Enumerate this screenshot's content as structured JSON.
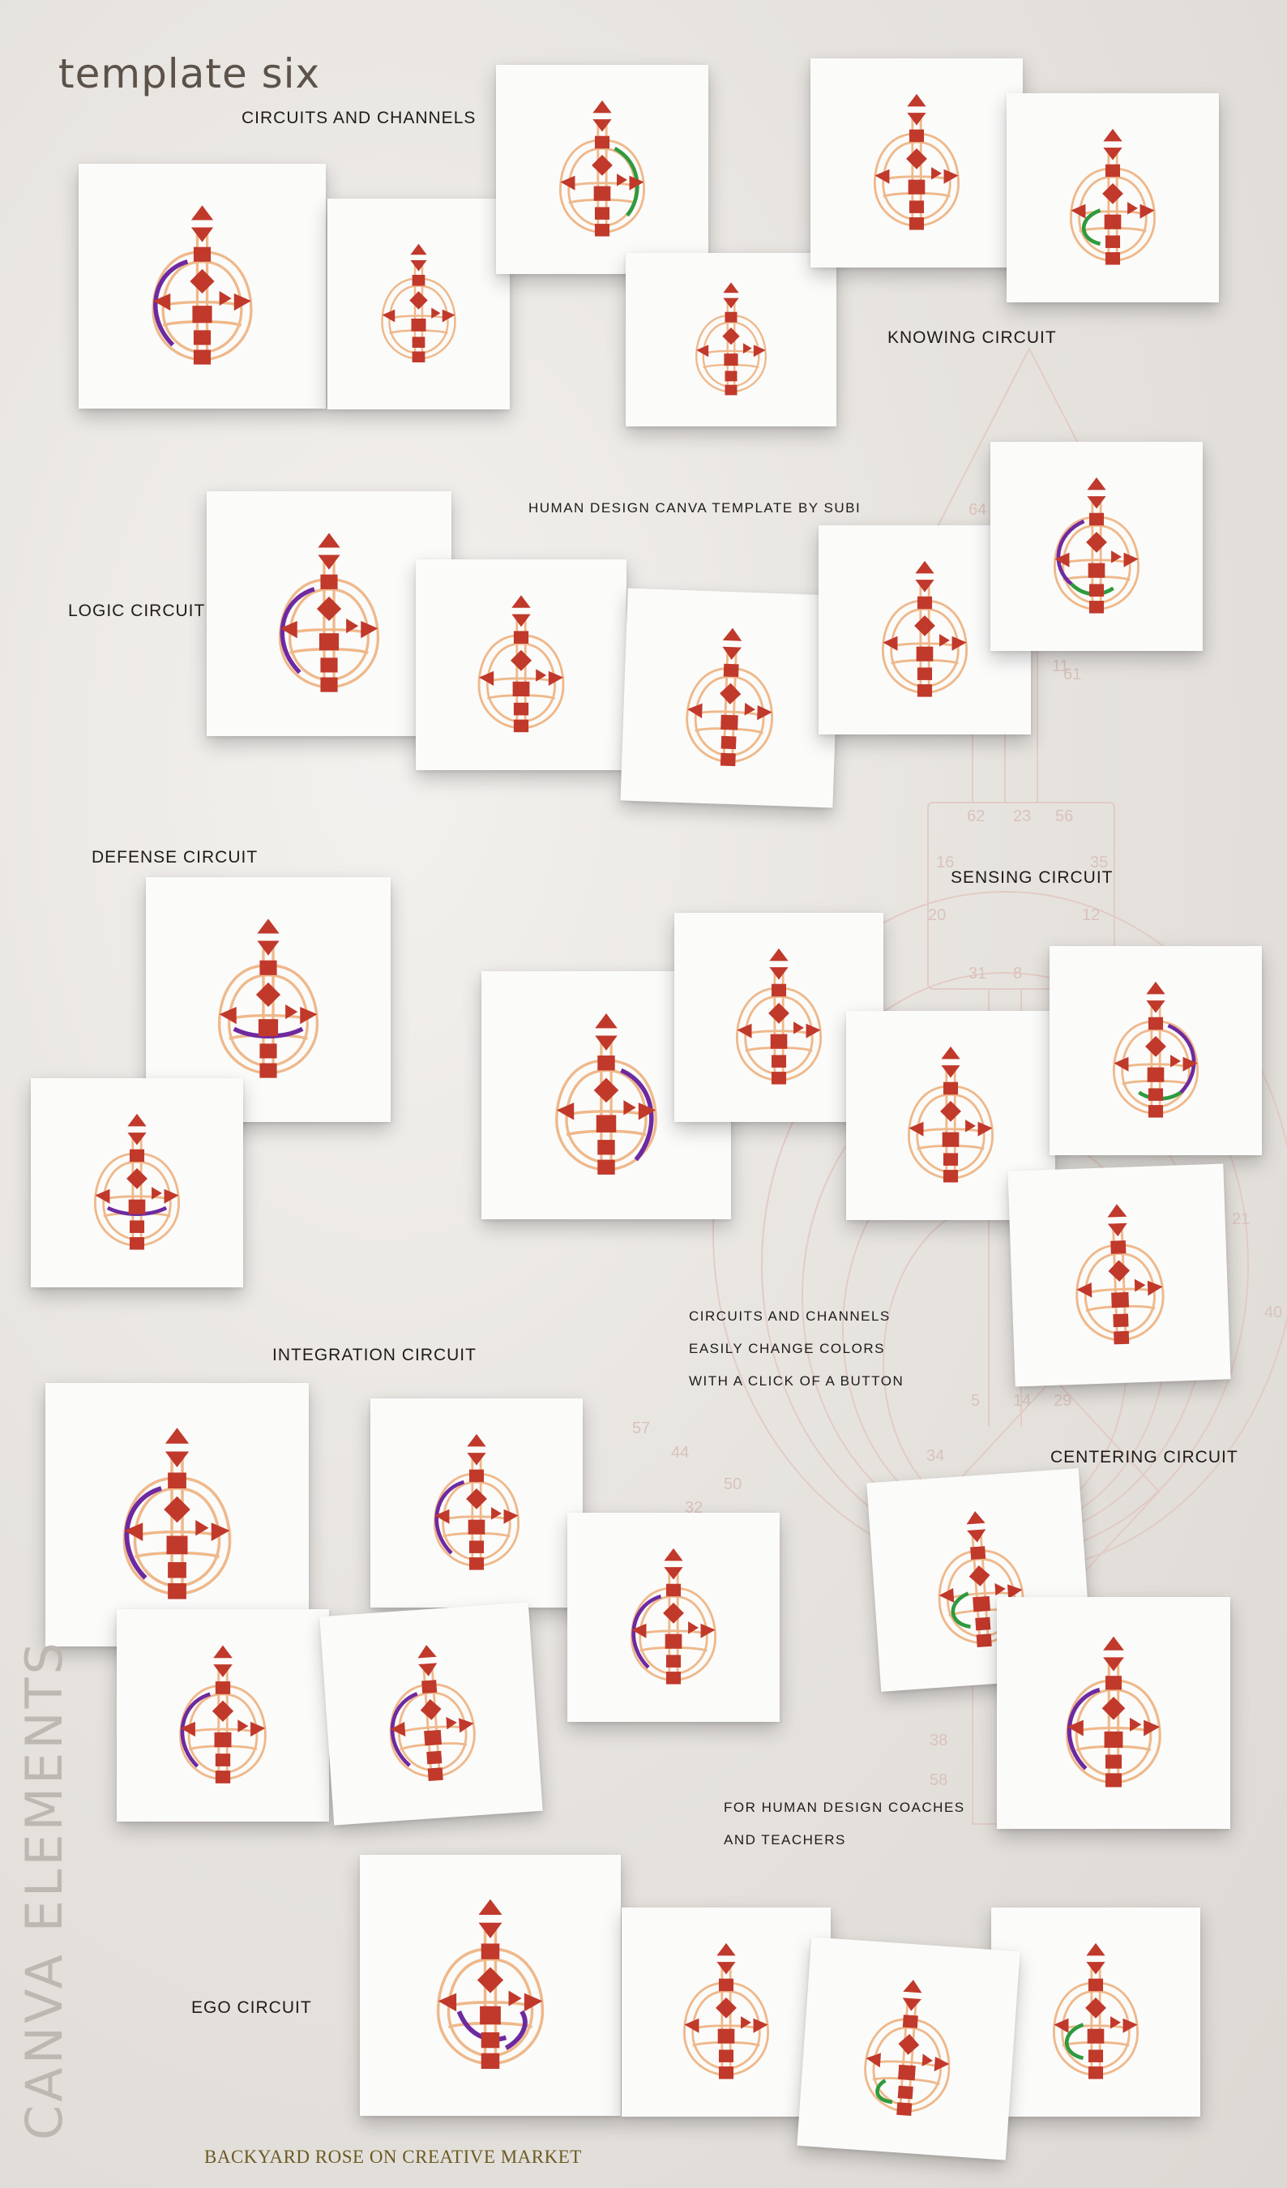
{
  "title": "template six",
  "side_label": "CANVA ELEMENTS",
  "footer": "BACKYARD ROSE ON CREATIVE MARKET",
  "colors": {
    "center": "#c0392b",
    "channel": "#efb88a",
    "purple": "#6d2aa0",
    "green": "#2e9a3e",
    "card": "#fbfbfa",
    "text": "#1e1b18"
  },
  "labels": [
    {
      "name": "circuits-and-channels-heading",
      "text": "CIRCUITS AND CHANNELS"
    },
    {
      "name": "knowing-circuit-label",
      "text": "KNOWING CIRCUIT"
    },
    {
      "name": "template-credit",
      "text": "HUMAN DESIGN CANVA TEMPLATE BY SUBI"
    },
    {
      "name": "logic-circuit-label",
      "text": "LOGIC CIRCUIT"
    },
    {
      "name": "defense-circuit-label",
      "text": "DEFENSE CIRCUIT"
    },
    {
      "name": "sensing-circuit-label",
      "text": "SENSING CIRCUIT"
    },
    {
      "name": "feature-line-1",
      "text": "CIRCUITS AND CHANNELS"
    },
    {
      "name": "feature-line-2",
      "text": "EASILY CHANGE COLORS"
    },
    {
      "name": "feature-line-3",
      "text": "WITH A CLICK OF A BUTTON"
    },
    {
      "name": "integration-circuit-label",
      "text": "INTEGRATION CIRCUIT"
    },
    {
      "name": "centering-circuit-label",
      "text": "CENTERING CIRCUIT"
    },
    {
      "name": "audience-line-1",
      "text": "FOR HUMAN DESIGN COACHES"
    },
    {
      "name": "audience-line-2",
      "text": "AND TEACHERS"
    },
    {
      "name": "ego-circuit-label",
      "text": "EGO CIRCUIT"
    }
  ],
  "background_gate_numbers": [
    "64",
    "61",
    "11",
    "62",
    "23",
    "56",
    "16",
    "35",
    "20",
    "12",
    "31",
    "8",
    "21",
    "40",
    "57",
    "44",
    "5",
    "14",
    "29",
    "34",
    "50",
    "32",
    "38",
    "58"
  ]
}
